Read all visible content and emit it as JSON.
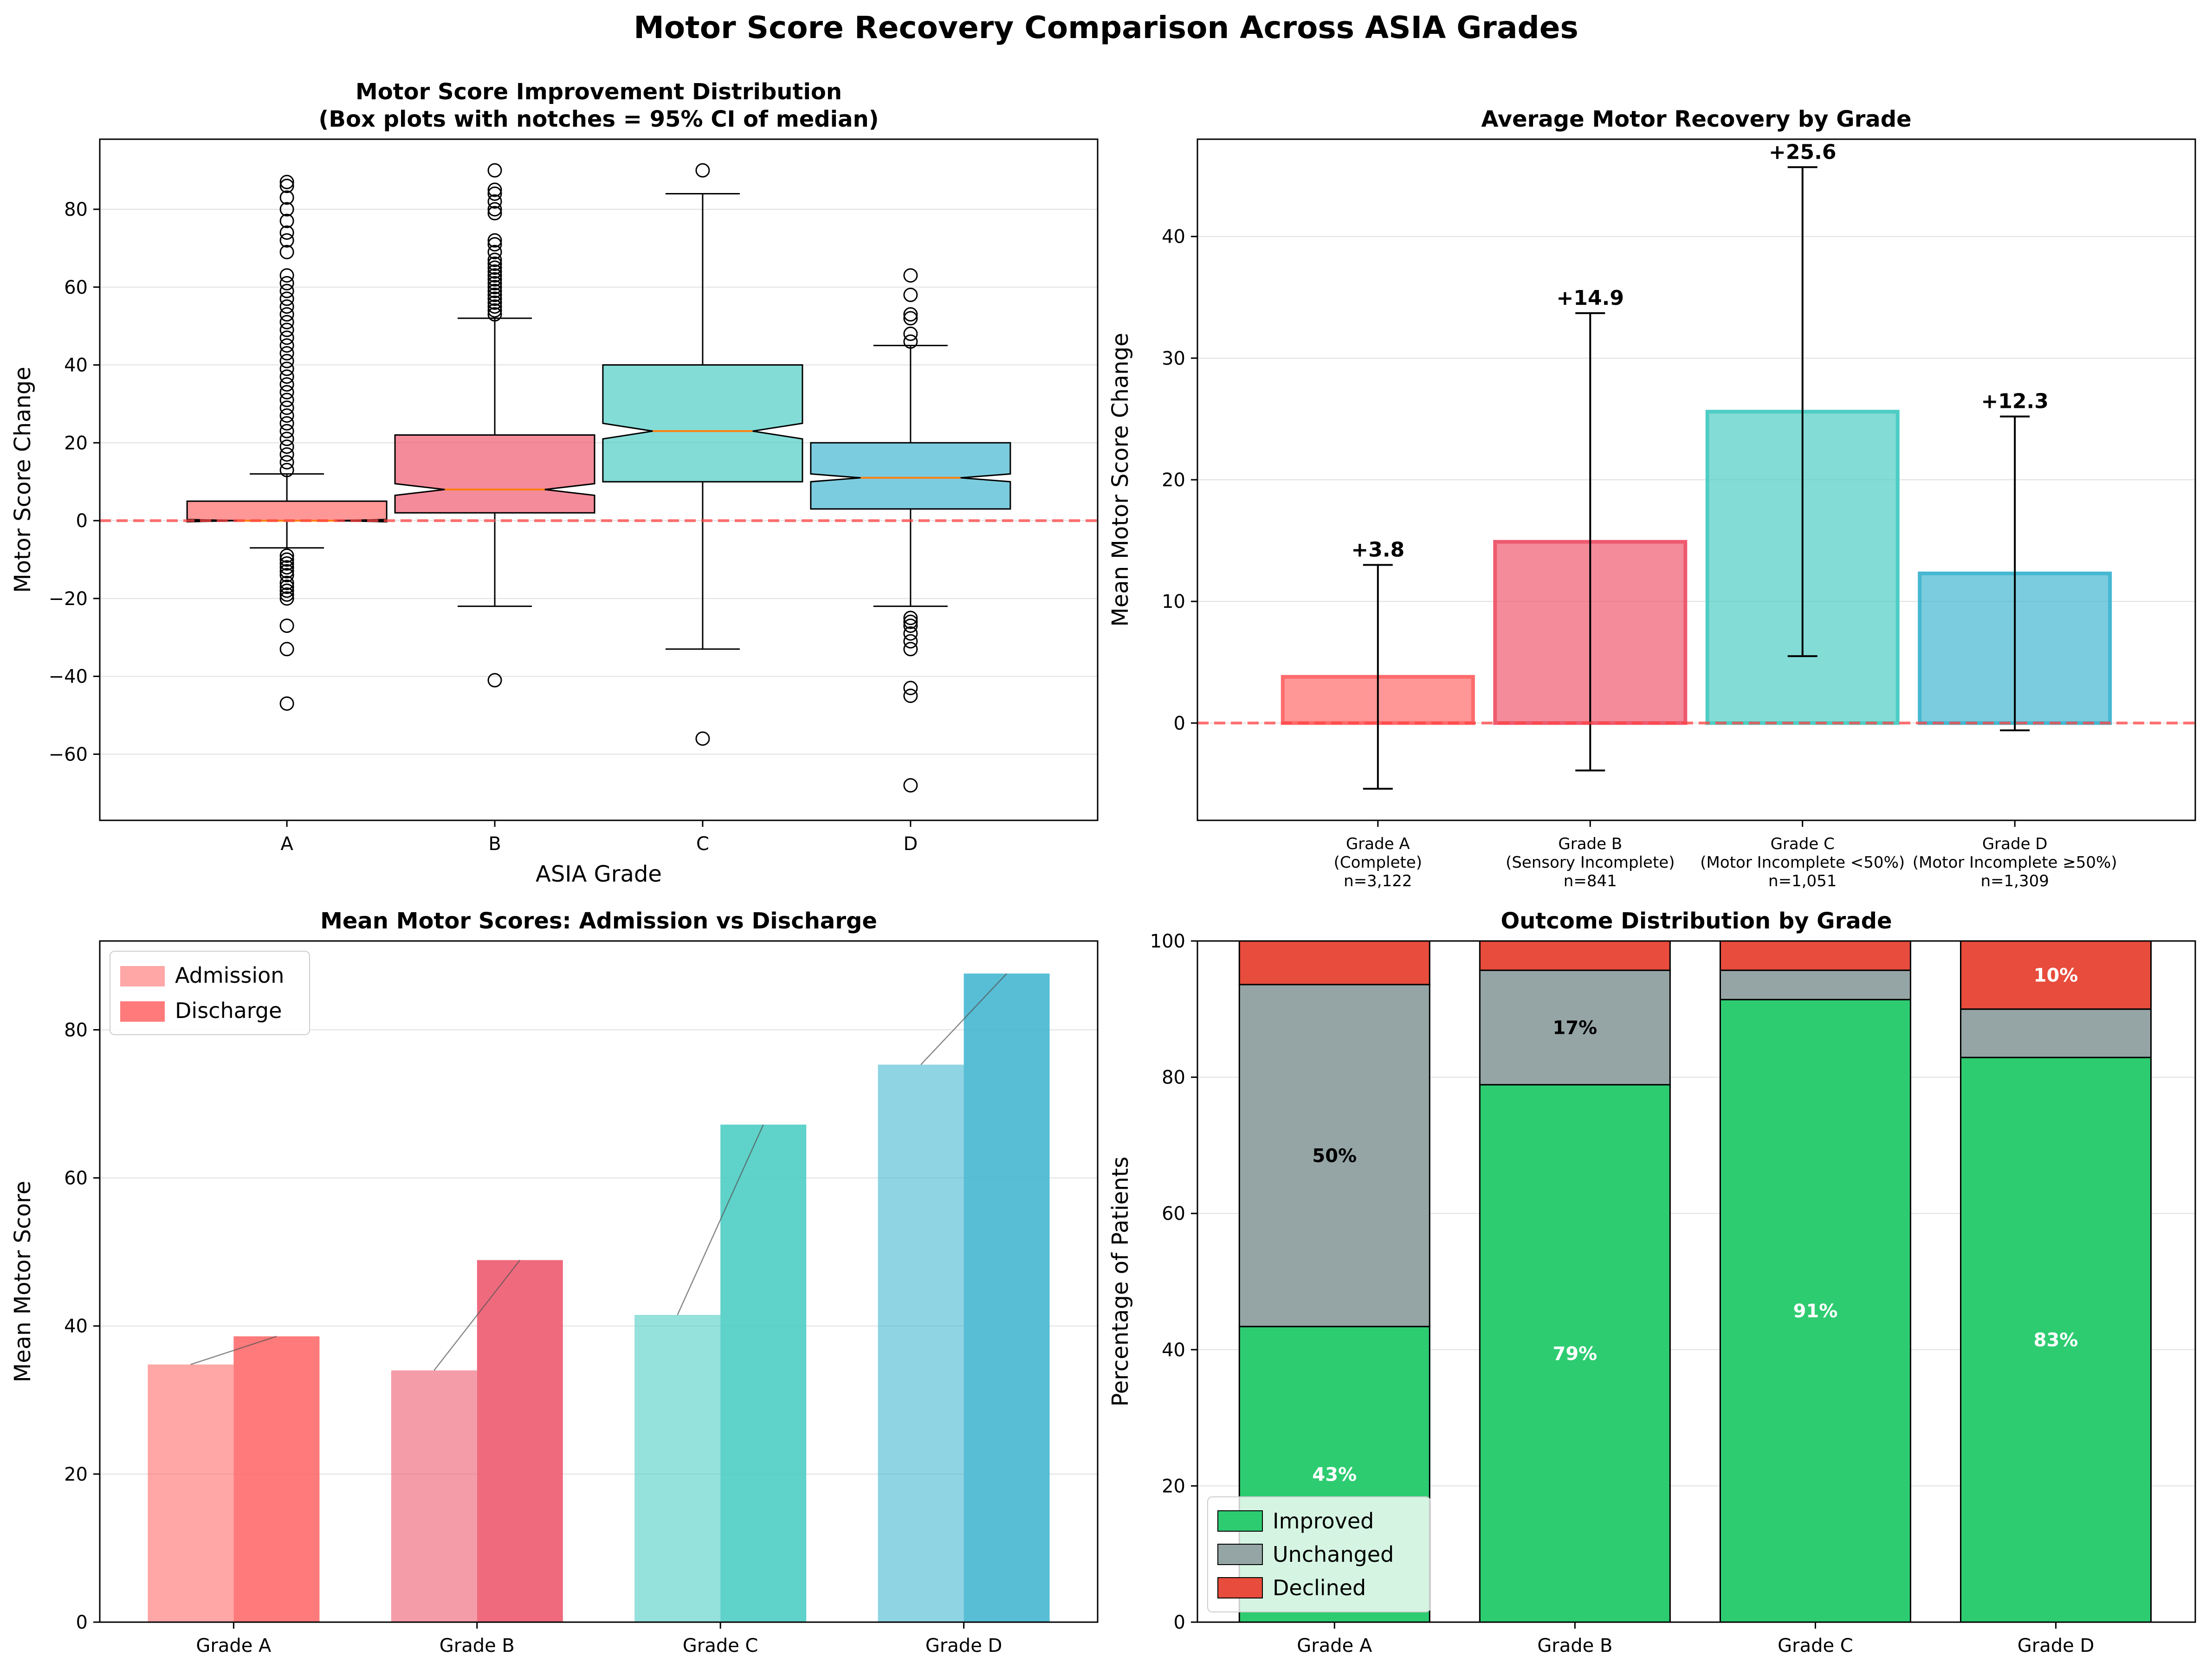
{
  "figure": {
    "title": "Motor Score Recovery Comparison Across ASIA Grades"
  },
  "colors": {
    "grade_a": "#FF6B6B",
    "grade_b": "#EE5A6F",
    "grade_c": "#4ECDC4",
    "grade_d": "#45B7D1",
    "improved": "#2ECC71",
    "unchanged": "#95A5A6",
    "declined": "#E74C3C",
    "median_line": "#FF7F0E",
    "zero_line": "#FF4444"
  },
  "chart_data": [
    {
      "type": "box",
      "title": "Motor Score Improvement Distribution",
      "subtitle": "(Box plots with notches = 95% CI of median)",
      "xlabel": "ASIA Grade",
      "ylabel": "Motor Score Change",
      "ylim": [
        -77,
        98
      ],
      "yticks": [
        -60,
        -40,
        -20,
        0,
        20,
        40,
        60,
        80
      ],
      "ytick_labels": [
        "−60",
        "−40",
        "−20",
        "0",
        "20",
        "40",
        "60",
        "80"
      ],
      "reference_line": 0,
      "grid": "y",
      "categories": [
        "A",
        "B",
        "C",
        "D"
      ],
      "boxes": [
        {
          "q1": 0,
          "median": 0,
          "q3": 5,
          "whisker_low": -7,
          "whisker_high": 12,
          "notch_low": -0.3,
          "notch_high": 0.3,
          "outliers": [
            87,
            86,
            83,
            80,
            77,
            74,
            72,
            69,
            63,
            61,
            59,
            57,
            55,
            53,
            51,
            49,
            47,
            45,
            43,
            41,
            39,
            37,
            35,
            33,
            31,
            29,
            27,
            25,
            23,
            21,
            19,
            17,
            15,
            13,
            -9,
            -10,
            -11,
            -12,
            -13,
            -14,
            -16,
            -17,
            -18,
            -19,
            -20,
            -27,
            -33,
            -47
          ]
        },
        {
          "q1": 2,
          "median": 8,
          "q3": 22,
          "whisker_low": -22,
          "whisker_high": 52,
          "notch_low": 6.5,
          "notch_high": 9.5,
          "outliers": [
            90,
            85,
            84,
            82,
            80,
            79,
            72,
            71,
            69,
            67,
            66,
            65,
            64,
            63,
            62,
            61,
            60,
            59,
            58,
            57,
            56,
            55,
            54,
            53,
            -41
          ]
        },
        {
          "q1": 10,
          "median": 23,
          "q3": 40,
          "whisker_low": -33,
          "whisker_high": 84,
          "notch_low": 21,
          "notch_high": 25,
          "outliers": [
            90,
            -56
          ]
        },
        {
          "q1": 3,
          "median": 11,
          "q3": 20,
          "whisker_low": -22,
          "whisker_high": 45,
          "notch_low": 10,
          "notch_high": 12,
          "outliers": [
            63,
            58,
            53,
            52,
            48,
            46,
            -25,
            -26,
            -27,
            -29,
            -31,
            -33,
            -43,
            -45,
            -68
          ]
        }
      ]
    },
    {
      "type": "bar",
      "title": "Average Motor Recovery by Grade",
      "xlabel": "",
      "ylabel": "Mean Motor Score Change",
      "ylim": [
        -8,
        48
      ],
      "yticks": [
        0,
        10,
        20,
        30,
        40
      ],
      "ytick_labels": [
        "0",
        "10",
        "20",
        "30",
        "40"
      ],
      "reference_line": 0,
      "grid": "y",
      "categories": [
        [
          "Grade A",
          "(Complete)",
          "n=3,122"
        ],
        [
          "Grade B",
          "(Sensory Incomplete)",
          "n=841"
        ],
        [
          "Grade C",
          "(Motor Incomplete <50%)",
          "n=1,051"
        ],
        [
          "Grade D",
          "(Motor Incomplete ≥50%)",
          "n=1,309"
        ]
      ],
      "values": [
        3.8,
        14.9,
        25.6,
        12.3
      ],
      "errors": [
        9.2,
        18.8,
        20.1,
        12.9
      ],
      "value_labels": [
        "+3.8",
        "+14.9",
        "+25.6",
        "+12.3"
      ]
    },
    {
      "type": "bar",
      "title": "Mean Motor Scores: Admission vs Discharge",
      "xlabel": "",
      "ylabel": "Mean Motor Score",
      "ylim": [
        0,
        92
      ],
      "yticks": [
        0,
        20,
        40,
        60,
        80
      ],
      "ytick_labels": [
        "0",
        "20",
        "40",
        "60",
        "80"
      ],
      "grid": "y",
      "legend": "top-left",
      "categories": [
        "Grade A",
        "Grade B",
        "Grade C",
        "Grade D"
      ],
      "series": [
        {
          "name": "Admission",
          "values": [
            34.8,
            34.0,
            41.5,
            75.3
          ]
        },
        {
          "name": "Discharge",
          "values": [
            38.6,
            48.9,
            67.2,
            87.6
          ]
        }
      ]
    },
    {
      "type": "stacked_bar",
      "title": "Outcome Distribution by Grade",
      "xlabel": "",
      "ylabel": "Percentage of Patients",
      "ylim": [
        0,
        100
      ],
      "yticks": [
        0,
        20,
        40,
        60,
        80,
        100
      ],
      "ytick_labels": [
        "0",
        "20",
        "40",
        "60",
        "80",
        "100"
      ],
      "grid": "y",
      "legend": "bottom-left",
      "categories": [
        "Grade A",
        "Grade B",
        "Grade C",
        "Grade D"
      ],
      "series": [
        {
          "name": "Improved",
          "values": [
            43.4,
            78.9,
            91.4,
            82.9
          ],
          "labels": [
            "43%",
            "79%",
            "91%",
            "83%"
          ]
        },
        {
          "name": "Unchanged",
          "values": [
            50.2,
            16.8,
            4.3,
            7.1
          ],
          "labels": [
            "50%",
            "17%",
            "",
            ""
          ]
        },
        {
          "name": "Declined",
          "values": [
            6.4,
            4.3,
            4.3,
            10.0
          ],
          "labels": [
            "",
            "",
            "",
            "10%"
          ]
        }
      ]
    }
  ]
}
